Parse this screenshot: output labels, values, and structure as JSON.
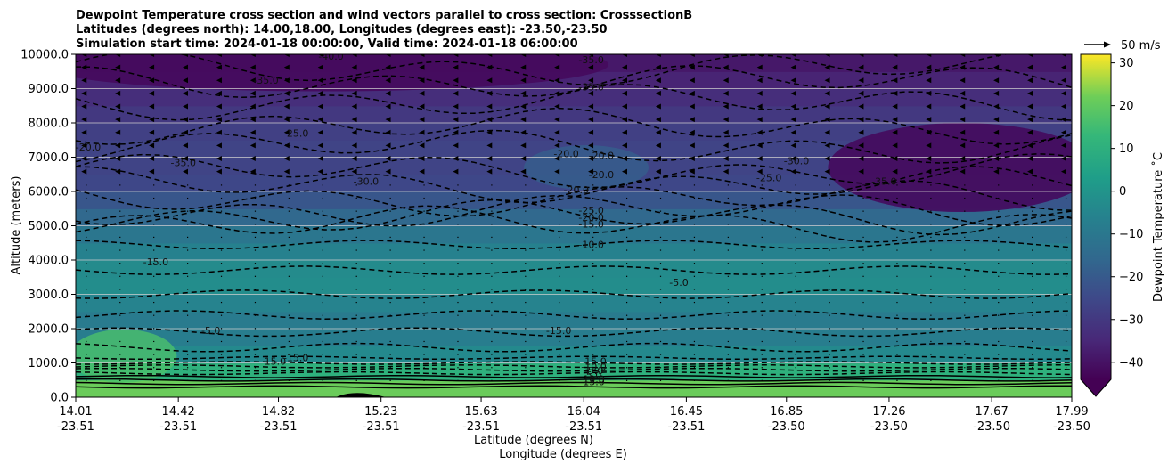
{
  "chart_data": {
    "type": "heatmap",
    "title_lines": [
      "Dewpoint Temperature cross section and wind vectors parallel to cross section: CrosssectionB",
      "Latitudes (degrees north): 14.00,18.00, Longitudes (degrees east): -23.50,-23.50",
      "Simulation start time: 2024-01-18 00:00:00, Valid time: 2024-01-18 06:00:00"
    ],
    "ylabel": "Altitude (meters)",
    "xlabel_lat": "Latitude (degrees N)",
    "xlabel_lon": "Longitude (degrees E)",
    "ylim": [
      0,
      10000
    ],
    "y_ticks": [
      "0.0",
      "1000.0",
      "2000.0",
      "3000.0",
      "4000.0",
      "5000.0",
      "6000.0",
      "7000.0",
      "8000.0",
      "9000.0",
      "10000.0"
    ],
    "y_tick_values": [
      0,
      1000,
      2000,
      3000,
      4000,
      5000,
      6000,
      7000,
      8000,
      9000,
      10000
    ],
    "x_ticks_lat": [
      "14.01",
      "14.42",
      "14.82",
      "15.23",
      "15.63",
      "16.04",
      "16.45",
      "16.85",
      "17.26",
      "17.67",
      "17.99"
    ],
    "x_ticks_lon": [
      "-23.51",
      "-23.51",
      "-23.51",
      "-23.51",
      "-23.51",
      "-23.51",
      "-23.51",
      "-23.50",
      "-23.50",
      "-23.50",
      "-23.50"
    ],
    "grid": "horizontal",
    "colorbar": {
      "label": "Dewpoint Temperature ˚C",
      "ticks": [
        "−40",
        "−30",
        "−20",
        "−10",
        "0",
        "10",
        "20",
        "30"
      ],
      "tick_values": [
        -40,
        -30,
        -20,
        -10,
        0,
        10,
        20,
        30
      ],
      "range": [
        -44,
        32
      ],
      "extend": "min",
      "colormap": "viridis"
    },
    "quiver_key": "50 m/s",
    "dewpoint_profile": {
      "heights": [
        0,
        500,
        1000,
        1500,
        2000,
        2500,
        3000,
        3500,
        4000,
        4500,
        5000,
        5500,
        6000,
        6500,
        7000,
        7500,
        8000,
        8500,
        9000,
        9500,
        10000
      ],
      "values": [
        15,
        14,
        -5,
        -11,
        -13,
        -12,
        -8,
        -6,
        -9,
        -12,
        -16,
        -21,
        -26,
        -29,
        -28,
        -29,
        -30,
        -33,
        -35,
        -38,
        -40
      ]
    },
    "contour_labels": [
      {
        "text": "-40.0",
        "lat": 15.03,
        "alt": 9950
      },
      {
        "text": "-35.0",
        "lat": 14.77,
        "alt": 9250
      },
      {
        "text": "-35.0",
        "lat": 16.07,
        "alt": 9850
      },
      {
        "text": "-35.0",
        "lat": 16.07,
        "alt": 9050
      },
      {
        "text": "-25.0",
        "lat": 14.89,
        "alt": 7700
      },
      {
        "text": "-20.0",
        "lat": 14.06,
        "alt": 7300
      },
      {
        "text": "-35.0",
        "lat": 14.44,
        "alt": 6850
      },
      {
        "text": "-30.0",
        "lat": 15.17,
        "alt": 6300
      },
      {
        "text": "-20.0",
        "lat": 15.97,
        "alt": 7100
      },
      {
        "text": "-20.0",
        "lat": 16.11,
        "alt": 7050
      },
      {
        "text": "-20.0",
        "lat": 16.11,
        "alt": 6500
      },
      {
        "text": "-20.0",
        "lat": 16.01,
        "alt": 6050
      },
      {
        "text": "-25.0",
        "lat": 16.78,
        "alt": 6400
      },
      {
        "text": "-30.0",
        "lat": 16.89,
        "alt": 6900
      },
      {
        "text": "-35.0",
        "lat": 17.24,
        "alt": 6300
      },
      {
        "text": "-25.0",
        "lat": 16.07,
        "alt": 5450
      },
      {
        "text": "-20.0",
        "lat": 16.07,
        "alt": 5250
      },
      {
        "text": "-15.0",
        "lat": 16.07,
        "alt": 5050
      },
      {
        "text": "-10.0",
        "lat": 16.07,
        "alt": 4450
      },
      {
        "text": "-15.0",
        "lat": 14.33,
        "alt": 3950
      },
      {
        "text": "-5.0",
        "lat": 16.42,
        "alt": 3350
      },
      {
        "text": "-5.0",
        "lat": 14.55,
        "alt": 1950
      },
      {
        "text": "-15.0",
        "lat": 15.94,
        "alt": 1950
      },
      {
        "text": "-15.0",
        "lat": 14.89,
        "alt": 1150
      },
      {
        "text": "-15.0",
        "lat": 14.8,
        "alt": 1050
      },
      {
        "text": "-15.0",
        "lat": 16.08,
        "alt": 1050
      },
      {
        "text": "-10.0",
        "lat": 16.08,
        "alt": 900
      },
      {
        "text": "-5.0",
        "lat": 16.08,
        "alt": 780
      },
      {
        "text": "5.0",
        "lat": 16.08,
        "alt": 650
      },
      {
        "text": "10.0",
        "lat": 16.08,
        "alt": 530
      },
      {
        "text": "15.0",
        "lat": 16.08,
        "alt": 450
      }
    ]
  }
}
